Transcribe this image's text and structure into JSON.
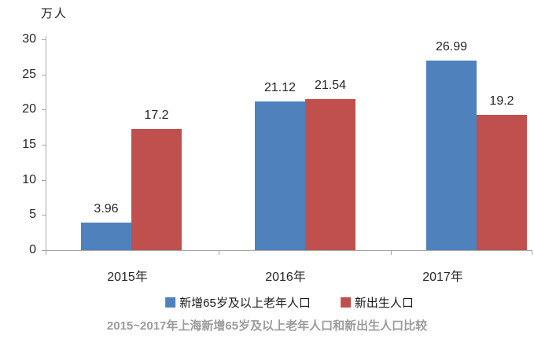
{
  "chart_data": {
    "type": "bar",
    "unit_label": "万人",
    "categories": [
      "2015年",
      "2016年",
      "2017年"
    ],
    "series": [
      {
        "name": "新增65岁及以上老年人口",
        "color": "#4F81BD",
        "values": [
          3.96,
          21.12,
          26.99
        ]
      },
      {
        "name": "新出生人口",
        "color": "#C0504D",
        "values": [
          17.2,
          21.54,
          19.2
        ]
      }
    ],
    "value_labels": [
      [
        "3.96",
        "21.12",
        "26.99"
      ],
      [
        "17.2",
        "21.54",
        "19.2"
      ]
    ],
    "yticks": [
      0,
      5,
      10,
      15,
      20,
      25,
      30
    ],
    "ylim": [
      0,
      30
    ],
    "grid": false,
    "legend_position": "bottom",
    "caption": "2015~2017年上海新增65岁及以上老年人口和新出生人口比较"
  }
}
